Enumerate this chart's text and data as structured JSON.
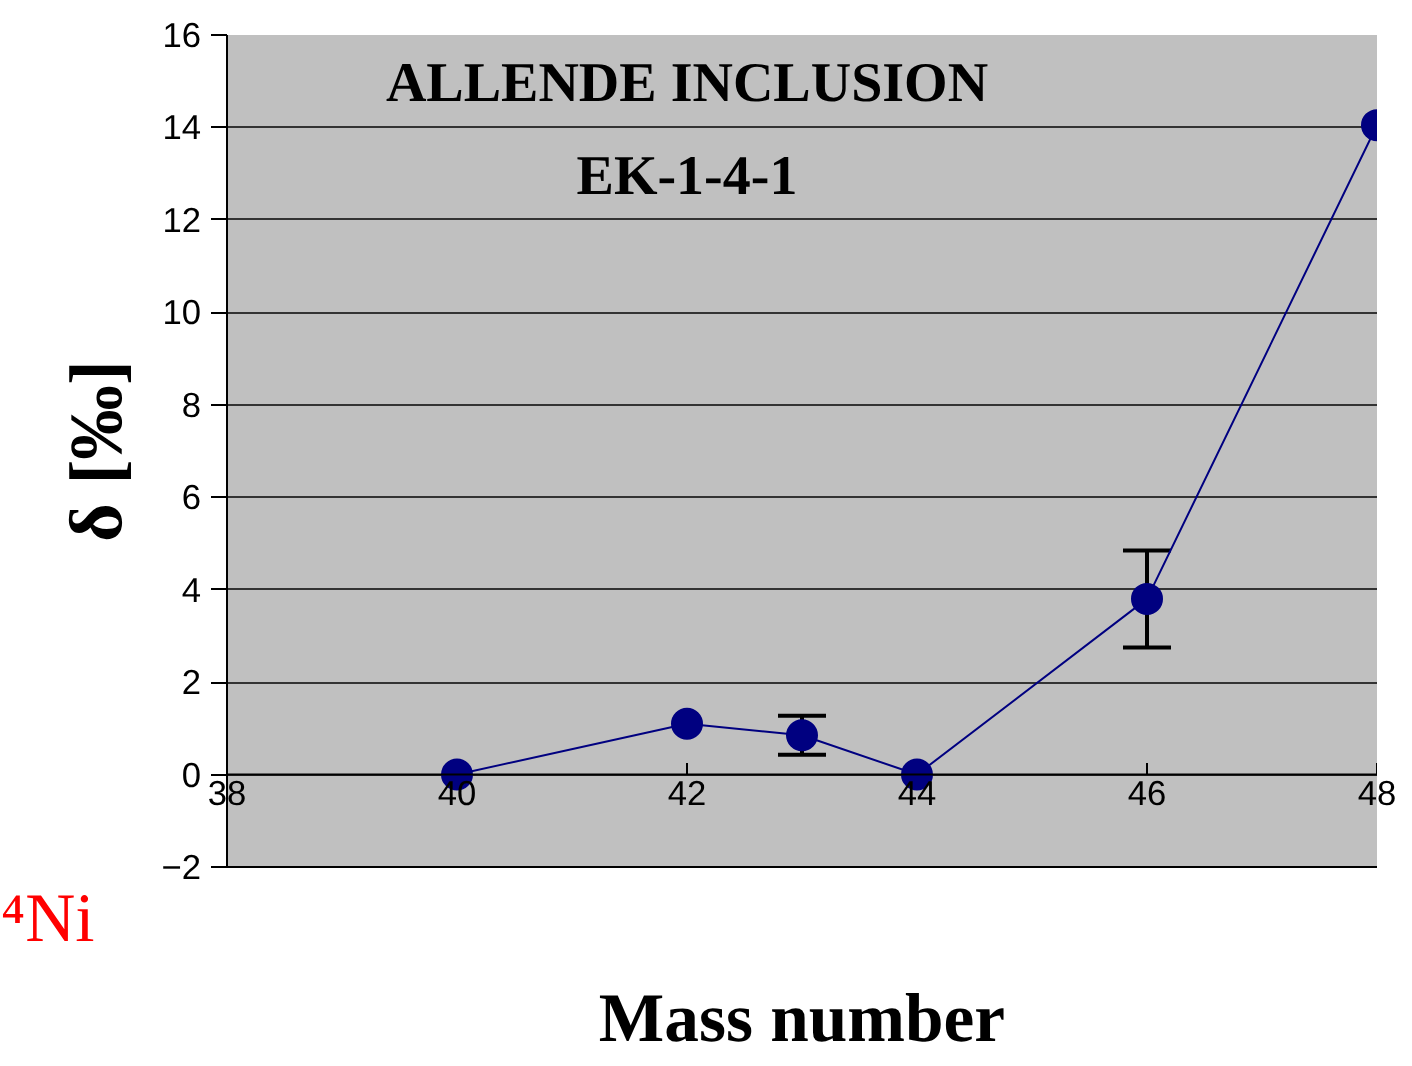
{
  "chart_data": {
    "type": "line",
    "title": "ALLENDE INCLUSION\nEK-1-4-1",
    "xlabel": "Mass number",
    "ylabel": "δ [‰]",
    "x": [
      40,
      42,
      43,
      44,
      46,
      48
    ],
    "series": [
      {
        "color": "#000080",
        "values": [
          0,
          1.1,
          0.85,
          0,
          3.8,
          14.05
        ],
        "errors": [
          null,
          null,
          0.42,
          null,
          1.05,
          null
        ]
      }
    ],
    "xlim": [
      38,
      48
    ],
    "ylim": [
      -2,
      16
    ],
    "xticks": [
      38,
      40,
      42,
      44,
      46,
      48
    ],
    "yticks": [
      -2,
      0,
      2,
      4,
      6,
      8,
      10,
      12,
      14,
      16
    ],
    "grid": "y",
    "marker": "circle",
    "line_style": "solid",
    "annotations": [
      "⁴Ni"
    ]
  }
}
